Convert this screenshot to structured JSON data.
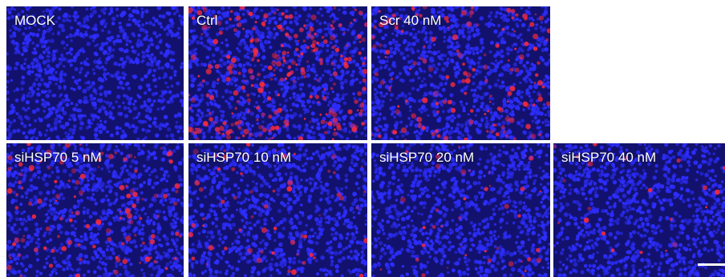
{
  "figure": {
    "background": "#ffffff",
    "nuclei_color": "#2d2dff",
    "background_stain_color": "#12126e",
    "signal_color": "#ff2a3a"
  },
  "panels": [
    {
      "label": "MOCK",
      "signal_level": 0.0
    },
    {
      "label": "Ctrl",
      "signal_level": 1.0
    },
    {
      "label": "Scr 40 nM",
      "signal_level": 0.55
    },
    {
      "label": "siHSP70 5 nM",
      "signal_level": 0.45
    },
    {
      "label": "siHSP70 10 nM",
      "signal_level": 0.22
    },
    {
      "label": "siHSP70 20 nM",
      "signal_level": 0.15
    },
    {
      "label": "siHSP70 40 nM",
      "signal_level": 0.08
    }
  ],
  "scale_bar": {
    "visible": true
  }
}
